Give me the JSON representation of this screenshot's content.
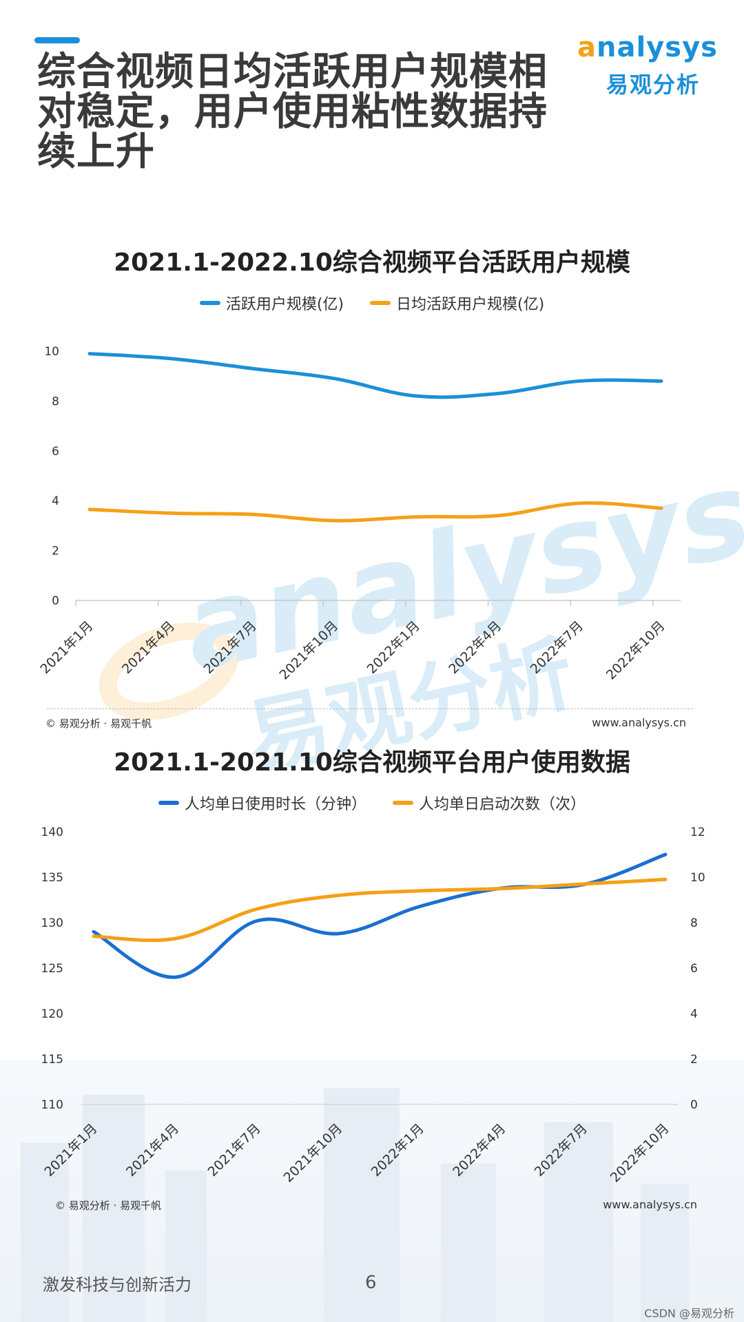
{
  "header": {
    "title": "综合视频日均活跃用户规模相对稳定，用户使用粘性数据持续上升",
    "logo_en_first": "a",
    "logo_en_rest": "nalysys",
    "logo_cn": "易观分析"
  },
  "watermark": {
    "en": "analysys",
    "cn": "易观分析"
  },
  "chart_data": [
    {
      "type": "line",
      "title": "2021.1-2022.10综合视频平台活跃用户规模",
      "categories": [
        "2021年1月",
        "2021年4月",
        "2021年7月",
        "2021年10月",
        "2022年1月",
        "2022年4月",
        "2022年7月",
        "2022年10月"
      ],
      "series": [
        {
          "name": "活跃用户规模(亿)",
          "color": "#1a90d9",
          "values": [
            9.9,
            9.7,
            9.3,
            8.9,
            8.2,
            8.3,
            8.8,
            8.8
          ]
        },
        {
          "name": "日均活跃用户规模(亿)",
          "color": "#f5a016",
          "values": [
            3.65,
            3.5,
            3.45,
            3.2,
            3.35,
            3.4,
            3.9,
            3.7
          ]
        }
      ],
      "yticks": [
        "0",
        "2",
        "4",
        "6",
        "8",
        "10"
      ],
      "ylim": [
        0,
        10
      ],
      "xlabel": "",
      "ylabel": "",
      "source_left": "© 易观分析 · 易观千帆",
      "source_right": "www.analysys.cn"
    },
    {
      "type": "line",
      "title": "2021.1-2021.10综合视频平台用户使用数据",
      "categories": [
        "2021年1月",
        "2021年4月",
        "2021年7月",
        "2021年10月",
        "2022年1月",
        "2022年4月",
        "2022年7月",
        "2022年10月"
      ],
      "series": [
        {
          "name": "人均单日使用时长（分钟）",
          "color": "#1a6fd0",
          "axis": "left",
          "values": [
            129,
            124,
            130.2,
            128.8,
            131.8,
            133.8,
            134.2,
            137.5
          ]
        },
        {
          "name": "人均单日启动次数（次）",
          "color": "#f5a016",
          "axis": "right",
          "values": [
            7.4,
            7.3,
            8.6,
            9.2,
            9.4,
            9.5,
            9.7,
            9.9
          ]
        }
      ],
      "yticks_left": [
        "110",
        "115",
        "120",
        "125",
        "130",
        "135",
        "140"
      ],
      "ylim_left": [
        110,
        140
      ],
      "yticks_right": [
        "0",
        "2",
        "4",
        "6",
        "8",
        "10",
        "12"
      ],
      "ylim_right": [
        0,
        12
      ],
      "xlabel": "",
      "ylabel": "",
      "source_left": "© 易观分析 · 易观千帆",
      "source_right": "www.analysys.cn"
    }
  ],
  "footer": {
    "slogan": "激发科技与创新活力",
    "page_number": "6",
    "credit": "CSDN @易观分析"
  }
}
